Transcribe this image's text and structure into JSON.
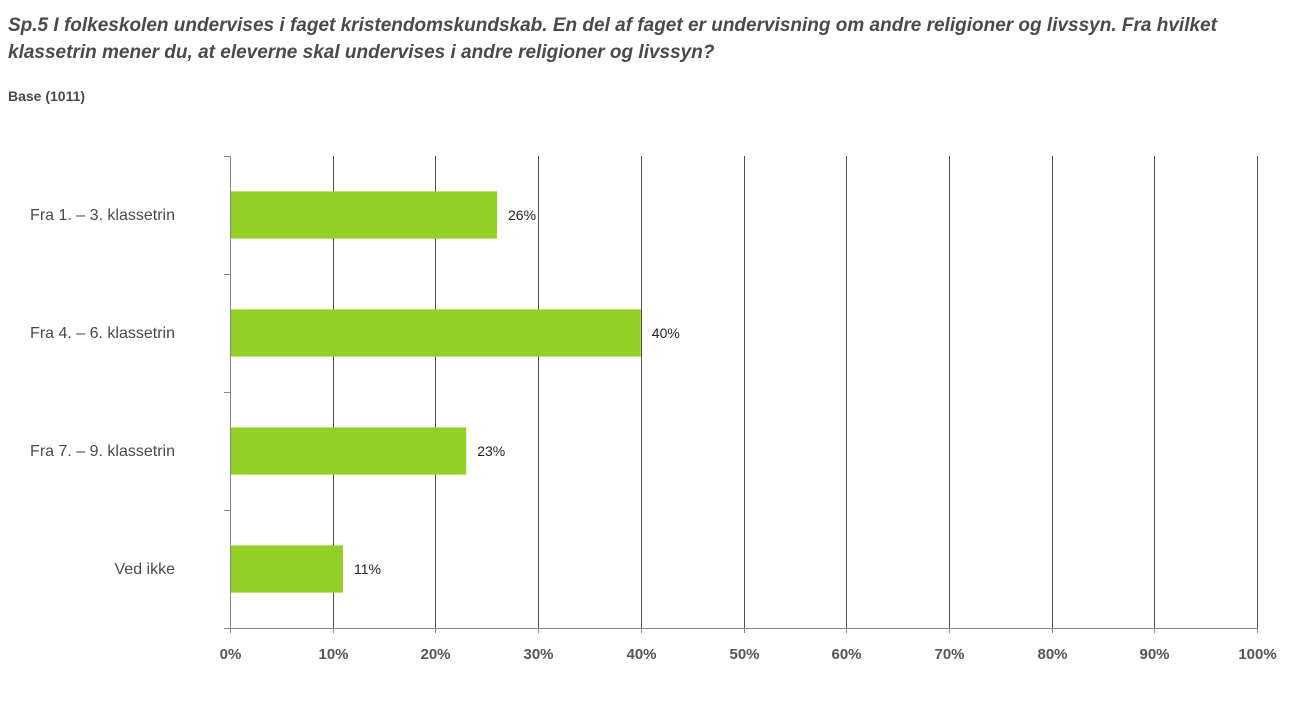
{
  "header": {
    "title": "Sp.5 I folkeskolen undervises i faget kristendomskundskab.  En del af faget er undervisning om andre religioner og livssyn. Fra hvilket klassetrin mener du, at eleverne skal undervises i andre religioner og livssyn?",
    "subtitle": "Base (1011)"
  },
  "chart_data": {
    "type": "bar",
    "orientation": "horizontal",
    "title": "Sp.5 I folkeskolen undervises i faget kristendomskundskab.  En del af faget er undervisning om andre religioner og livssyn. Fra hvilket klassetrin mener du, at eleverne skal undervises i andre religioner og livssyn?",
    "subtitle": "Base (1011)",
    "categories": [
      "Fra 1. – 3. klassetrin",
      "Fra 4. – 6. klassetrin",
      "Fra 7. – 9. klassetrin",
      "Ved ikke"
    ],
    "values": [
      26,
      40,
      23,
      11
    ],
    "data_labels": [
      "26%",
      "40%",
      "23%",
      "11%"
    ],
    "xlim": [
      0,
      100
    ],
    "x_ticks": [
      "0%",
      "10%",
      "20%",
      "30%",
      "40%",
      "50%",
      "60%",
      "70%",
      "80%",
      "90%",
      "100%"
    ],
    "xlabel": "",
    "ylabel": "",
    "grid": "vertical",
    "legend": "none",
    "colors": {
      "bar": "#92d026",
      "grid": "#4d4d4d",
      "axis": "#888888"
    }
  }
}
